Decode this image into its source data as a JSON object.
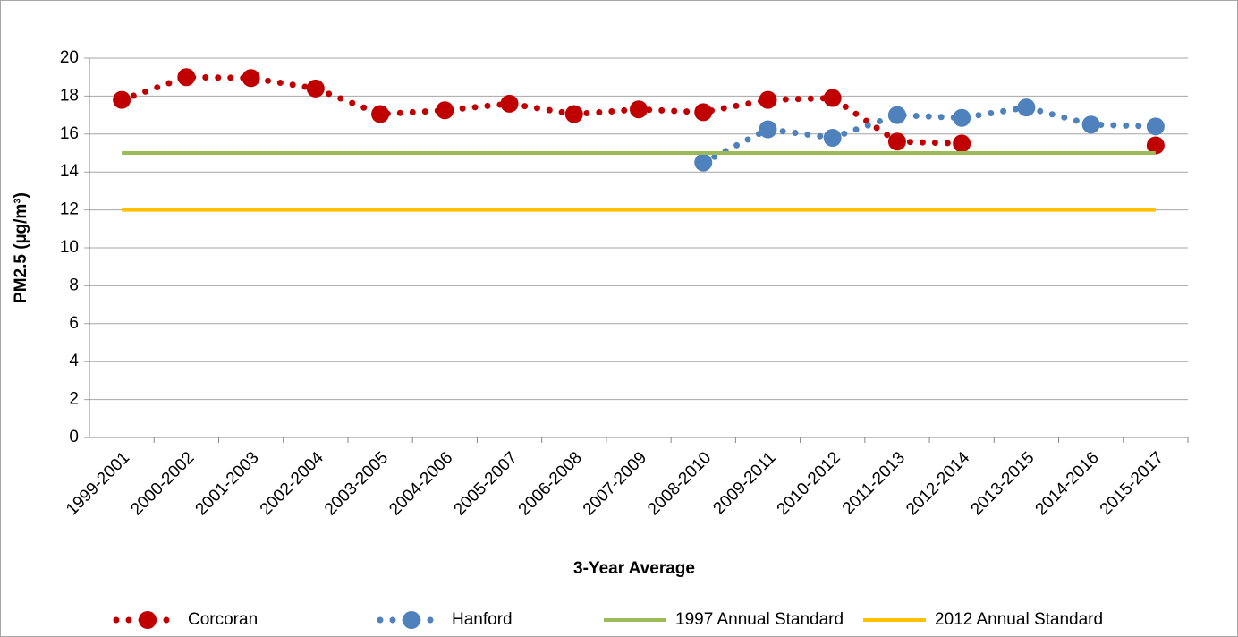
{
  "chart_data": {
    "type": "line",
    "xlabel": "3-Year Average",
    "ylabel": "PM2.5 (µg/m³)",
    "categories": [
      "1999-2001",
      "2000-2002",
      "2001-2003",
      "2002-2004",
      "2003-2005",
      "2004-2006",
      "2005-2007",
      "2006-2008",
      "2007-2009",
      "2008-2010",
      "2009-2011",
      "2010-2012",
      "2011-2013",
      "2012-2014",
      "2013-2015",
      "2014-2016",
      "2015-2017"
    ],
    "series": [
      {
        "name": "Corcoran",
        "color": "#c00000",
        "line_style": "dotted",
        "markers": true,
        "values": [
          17.8,
          19.0,
          18.95,
          18.4,
          17.05,
          17.25,
          17.6,
          17.05,
          17.3,
          17.15,
          17.8,
          17.9,
          15.6,
          15.5,
          null,
          null,
          15.4
        ]
      },
      {
        "name": "Hanford",
        "color": "#4f81bd",
        "line_style": "dotted",
        "markers": true,
        "values": [
          null,
          null,
          null,
          null,
          null,
          null,
          null,
          null,
          null,
          14.5,
          16.25,
          15.8,
          17.0,
          16.85,
          17.4,
          16.5,
          16.4
        ]
      },
      {
        "name": "1997 Annual Standard",
        "color": "#9bbb59",
        "line_style": "solid",
        "markers": false,
        "values": [
          15,
          15,
          15,
          15,
          15,
          15,
          15,
          15,
          15,
          15,
          15,
          15,
          15,
          15,
          15,
          15,
          15
        ]
      },
      {
        "name": "2012 Annual Standard",
        "color": "#ffc000",
        "line_style": "solid",
        "markers": false,
        "values": [
          12,
          12,
          12,
          12,
          12,
          12,
          12,
          12,
          12,
          12,
          12,
          12,
          12,
          12,
          12,
          12,
          12
        ]
      }
    ],
    "ylim": [
      0,
      20
    ],
    "yticks": [
      0,
      2,
      4,
      6,
      8,
      10,
      12,
      14,
      16,
      18,
      20
    ],
    "grid": true,
    "legend": "bottom"
  }
}
